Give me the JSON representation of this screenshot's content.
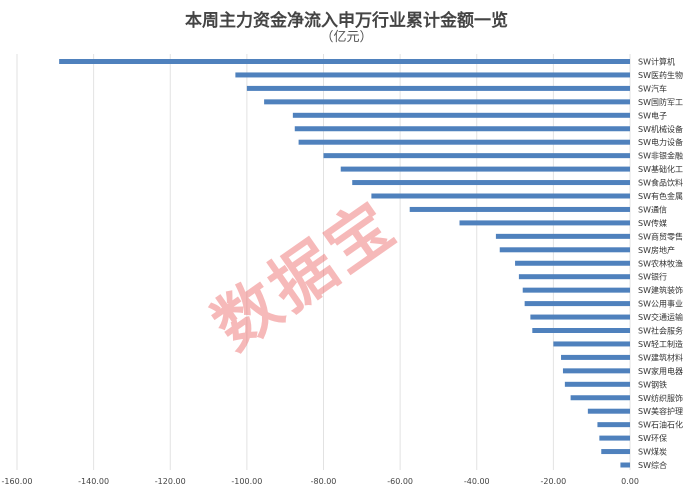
{
  "chart_data": {
    "type": "bar",
    "orientation": "horizontal",
    "title": "本周主力资金净流入申万行业累计金额一览",
    "subtitle": "（亿元）",
    "categories": [
      "SW计算机",
      "SW医药生物",
      "SW汽车",
      "SW国防军工",
      "SW电子",
      "SW机械设备",
      "SW电力设备",
      "SW非银金融",
      "SW基础化工",
      "SW食品饮料",
      "SW有色金属",
      "SW通信",
      "SW传媒",
      "SW商贸零售",
      "SW房地产",
      "SW农林牧渔",
      "SW银行",
      "SW建筑装饰",
      "SW公用事业",
      "SW交通运输",
      "SW社会服务",
      "SW轻工制造",
      "SW建筑材料",
      "SW家用电器",
      "SW钢铁",
      "SW纺织服饰",
      "SW美容护理",
      "SW石油石化",
      "SW环保",
      "SW煤炭",
      "SW综合"
    ],
    "values": [
      -149,
      -103,
      -100,
      -95.5,
      -88,
      -87.5,
      -86.5,
      -80,
      -75.5,
      -72.5,
      -67.5,
      -57.5,
      -44.5,
      -35,
      -34,
      -30,
      -29,
      -28,
      -27.5,
      -26,
      -25.5,
      -20,
      -18,
      -17.5,
      -17,
      -15.5,
      -11,
      -8.5,
      -8,
      -7.5,
      -2.5
    ],
    "xlim": [
      -160,
      0
    ],
    "xticks": [
      "-160.00",
      "-140.00",
      "-120.00",
      "-100.00",
      "-80.00",
      "-60.00",
      "-40.00",
      "-20.00",
      "0.00"
    ],
    "grid": true,
    "bar_color": "#4f81bd",
    "watermark": "数据宝"
  }
}
